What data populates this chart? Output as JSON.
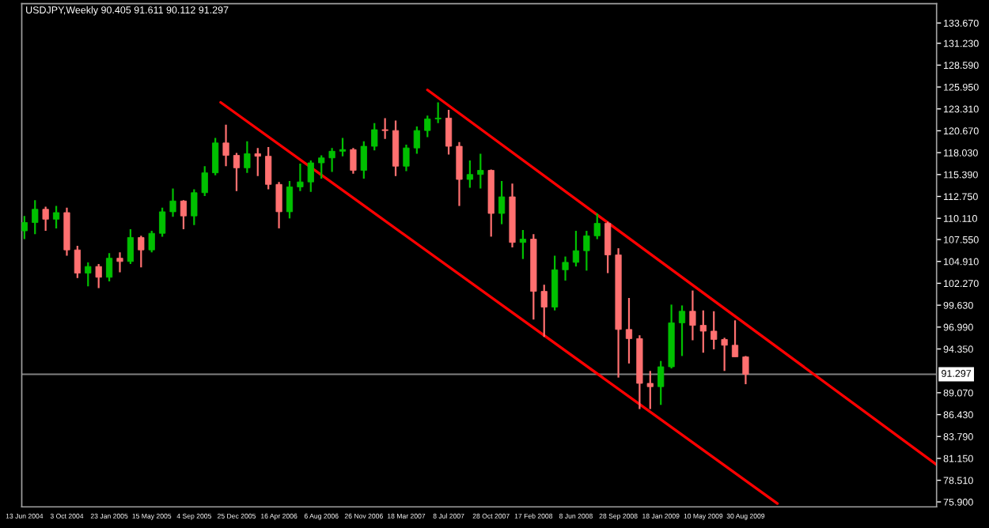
{
  "chart_data": {
    "type": "candlestick",
    "title": "USDJPY,Weekly 90.405 91.611 90.112 91.297",
    "x": [
      "2004-06-13",
      "2004-07-11",
      "2004-08-08",
      "2004-09-05",
      "2004-10-03",
      "2004-10-31",
      "2004-11-28",
      "2004-12-26",
      "2005-01-23",
      "2005-02-20",
      "2005-03-20",
      "2005-04-17",
      "2005-05-15",
      "2005-06-12",
      "2005-07-10",
      "2005-08-07",
      "2005-09-04",
      "2005-10-02",
      "2005-10-30",
      "2005-11-27",
      "2005-12-25",
      "2006-01-22",
      "2006-02-19",
      "2006-03-19",
      "2006-04-16",
      "2006-05-14",
      "2006-06-11",
      "2006-07-09",
      "2006-08-06",
      "2006-09-03",
      "2006-10-01",
      "2006-10-29",
      "2006-11-26",
      "2006-12-24",
      "2007-01-21",
      "2007-02-18",
      "2007-03-18",
      "2007-04-15",
      "2007-05-13",
      "2007-06-10",
      "2007-07-08",
      "2007-08-05",
      "2007-09-02",
      "2007-09-30",
      "2007-10-28",
      "2007-11-25",
      "2007-12-23",
      "2008-01-20",
      "2008-02-17",
      "2008-03-16",
      "2008-04-13",
      "2008-05-11",
      "2008-06-08",
      "2008-07-06",
      "2008-08-03",
      "2008-08-31",
      "2008-09-28",
      "2008-10-26",
      "2008-11-23",
      "2008-12-21",
      "2009-01-18",
      "2009-02-15",
      "2009-03-15",
      "2009-04-12",
      "2009-05-10",
      "2009-06-07",
      "2009-07-05",
      "2009-08-02",
      "2009-08-30"
    ],
    "ohlc": [
      [
        108.6,
        110.4,
        107.6,
        109.6
      ],
      [
        109.6,
        112.3,
        108.2,
        111.2
      ],
      [
        111.2,
        111.5,
        108.6,
        110.0
      ],
      [
        110.0,
        111.6,
        108.9,
        110.8
      ],
      [
        110.8,
        111.4,
        105.6,
        106.3
      ],
      [
        106.3,
        106.8,
        102.9,
        103.5
      ],
      [
        103.5,
        104.8,
        101.9,
        104.3
      ],
      [
        104.3,
        104.6,
        101.7,
        103.0
      ],
      [
        103.0,
        105.9,
        102.5,
        105.3
      ],
      [
        105.3,
        106.0,
        103.6,
        104.9
      ],
      [
        104.9,
        108.8,
        104.6,
        107.8
      ],
      [
        107.8,
        108.0,
        104.2,
        106.3
      ],
      [
        106.3,
        108.6,
        106.0,
        108.3
      ],
      [
        108.3,
        111.4,
        107.9,
        110.9
      ],
      [
        110.9,
        113.7,
        110.3,
        112.2
      ],
      [
        112.2,
        112.3,
        108.8,
        110.4
      ],
      [
        110.4,
        113.6,
        109.3,
        113.2
      ],
      [
        113.2,
        116.4,
        112.8,
        115.6
      ],
      [
        115.6,
        119.8,
        115.3,
        119.2
      ],
      [
        119.2,
        121.4,
        116.4,
        117.7
      ],
      [
        117.7,
        118.0,
        113.4,
        116.2
      ],
      [
        116.2,
        119.4,
        115.6,
        117.9
      ],
      [
        117.9,
        118.6,
        115.2,
        117.6
      ],
      [
        117.6,
        118.7,
        113.6,
        114.2
      ],
      [
        114.2,
        114.5,
        108.9,
        110.9
      ],
      [
        110.9,
        114.6,
        110.1,
        113.9
      ],
      [
        113.9,
        116.7,
        113.4,
        114.5
      ],
      [
        114.5,
        117.1,
        113.3,
        116.8
      ],
      [
        116.8,
        117.7,
        114.9,
        117.4
      ],
      [
        117.4,
        118.6,
        115.7,
        118.2
      ],
      [
        118.2,
        119.8,
        117.6,
        118.4
      ],
      [
        118.4,
        118.6,
        115.5,
        115.9
      ],
      [
        115.9,
        119.4,
        114.9,
        118.8
      ],
      [
        118.8,
        121.6,
        118.3,
        120.8
      ],
      [
        120.8,
        122.2,
        119.7,
        120.7
      ],
      [
        120.7,
        121.9,
        115.2,
        116.4
      ],
      [
        116.4,
        119.0,
        115.8,
        118.6
      ],
      [
        118.6,
        121.2,
        117.9,
        120.7
      ],
      [
        120.7,
        122.5,
        119.9,
        122.1
      ],
      [
        122.1,
        124.1,
        121.6,
        122.2
      ],
      [
        122.2,
        123.2,
        117.8,
        118.8
      ],
      [
        118.8,
        119.3,
        111.6,
        114.8
      ],
      [
        114.8,
        117.1,
        113.8,
        115.4
      ],
      [
        115.4,
        117.9,
        113.7,
        115.9
      ],
      [
        115.9,
        116.0,
        107.9,
        110.7
      ],
      [
        110.7,
        114.6,
        109.4,
        112.7
      ],
      [
        112.7,
        114.3,
        106.6,
        107.2
      ],
      [
        107.2,
        108.7,
        105.2,
        107.6
      ],
      [
        107.6,
        108.2,
        97.9,
        101.3
      ],
      [
        101.3,
        102.1,
        95.8,
        99.4
      ],
      [
        99.4,
        105.6,
        99.0,
        103.9
      ],
      [
        103.9,
        105.5,
        102.6,
        104.8
      ],
      [
        104.8,
        108.6,
        104.3,
        106.2
      ],
      [
        106.2,
        108.6,
        103.8,
        108.0
      ],
      [
        108.0,
        110.7,
        107.6,
        109.5
      ],
      [
        109.5,
        109.7,
        103.5,
        105.7
      ],
      [
        105.7,
        106.5,
        90.9,
        96.7
      ],
      [
        96.7,
        100.5,
        92.6,
        95.6
      ],
      [
        95.6,
        96.0,
        87.1,
        90.2
      ],
      [
        90.2,
        91.7,
        87.1,
        89.8
      ],
      [
        89.8,
        92.9,
        87.6,
        92.2
      ],
      [
        92.2,
        99.7,
        92.0,
        97.5
      ],
      [
        97.5,
        99.6,
        93.5,
        98.9
      ],
      [
        98.9,
        101.4,
        95.4,
        97.2
      ],
      [
        97.2,
        99.0,
        93.9,
        96.5
      ],
      [
        96.5,
        98.9,
        94.3,
        95.5
      ],
      [
        95.5,
        95.7,
        91.7,
        94.8
      ],
      [
        94.8,
        97.8,
        93.4,
        93.4
      ],
      [
        93.4,
        93.5,
        90.1,
        91.297
      ]
    ],
    "colors": [
      "#00c000",
      "#00c000",
      "#ff7070",
      "#00c000",
      "#ff7070",
      "#ff7070",
      "#00c000",
      "#ff7070",
      "#00c000",
      "#ff7070",
      "#00c000",
      "#ff7070",
      "#00c000",
      "#00c000",
      "#00c000",
      "#ff7070",
      "#00c000",
      "#00c000",
      "#00c000",
      "#ff7070",
      "#ff7070",
      "#00c000",
      "#ff7070",
      "#ff7070",
      "#ff7070",
      "#00c000",
      "#00c000",
      "#00c000",
      "#00c000",
      "#00c000",
      "#00c000",
      "#ff7070",
      "#00c000",
      "#00c000",
      "#ff7070",
      "#ff7070",
      "#00c000",
      "#00c000",
      "#00c000",
      "#00c000",
      "#ff7070",
      "#ff7070",
      "#00c000",
      "#00c000",
      "#ff7070",
      "#00c000",
      "#ff7070",
      "#00c000",
      "#ff7070",
      "#ff7070",
      "#00c000",
      "#00c000",
      "#00c000",
      "#00c000",
      "#00c000",
      "#ff7070",
      "#ff7070",
      "#ff7070",
      "#ff7070",
      "#ff7070",
      "#00c000",
      "#00c000",
      "#00c000",
      "#ff7070",
      "#ff7070",
      "#ff7070",
      "#ff7070",
      "#ff7070",
      "#ff7070"
    ],
    "series": [
      {
        "type": "line",
        "color": "#ff0000",
        "x": [
          "2007-05-13",
          "2011-01-16"
        ],
        "values": [
          125.6,
          80.4
        ]
      },
      {
        "type": "line",
        "color": "#ff0000",
        "x": [
          "2005-11-13",
          "2009-11-22"
        ],
        "values": [
          124.1,
          75.7
        ]
      }
    ],
    "ref_lines": [
      {
        "axis": "y",
        "value": 91.297,
        "label": "91.297",
        "color": "#808080"
      }
    ],
    "xlim": [
      "2004-06-06",
      "2011-01-16"
    ],
    "ylim": [
      75.3,
      136.0
    ],
    "xticks": [
      {
        "value": "2004-06-13",
        "label": "13 Jun 2004"
      },
      {
        "value": "2004-10-03",
        "label": "3 Oct 2004"
      },
      {
        "value": "2005-01-23",
        "label": "23 Jan 2005"
      },
      {
        "value": "2005-05-15",
        "label": "15 May 2005"
      },
      {
        "value": "2005-09-04",
        "label": "4 Sep 2005"
      },
      {
        "value": "2005-12-25",
        "label": "25 Dec 2005"
      },
      {
        "value": "2006-04-16",
        "label": "16 Apr 2006"
      },
      {
        "value": "2006-08-06",
        "label": "6 Aug 2006"
      },
      {
        "value": "2006-11-26",
        "label": "26 Nov 2006"
      },
      {
        "value": "2007-03-18",
        "label": "18 Mar 2007"
      },
      {
        "value": "2007-07-08",
        "label": "8 Jul 2007"
      },
      {
        "value": "2007-10-28",
        "label": "28 Oct 2007"
      },
      {
        "value": "2008-02-17",
        "label": "17 Feb 2008"
      },
      {
        "value": "2008-06-08",
        "label": "8 Jun 2008"
      },
      {
        "value": "2008-09-28",
        "label": "28 Sep 2008"
      },
      {
        "value": "2009-01-18",
        "label": "18 Jan 2009"
      },
      {
        "value": "2009-05-10",
        "label": "10 May 2009"
      },
      {
        "value": "2009-08-30",
        "label": "30 Aug 2009"
      }
    ],
    "yticks": [
      {
        "value": 133.67,
        "label": "133.670"
      },
      {
        "value": 131.23,
        "label": "131.230"
      },
      {
        "value": 128.59,
        "label": "128.590"
      },
      {
        "value": 125.95,
        "label": "125.950"
      },
      {
        "value": 123.31,
        "label": "123.310"
      },
      {
        "value": 120.67,
        "label": "120.670"
      },
      {
        "value": 118.03,
        "label": "118.030"
      },
      {
        "value": 115.39,
        "label": "115.390"
      },
      {
        "value": 112.75,
        "label": "112.750"
      },
      {
        "value": 110.11,
        "label": "110.110"
      },
      {
        "value": 107.55,
        "label": "107.550"
      },
      {
        "value": 104.91,
        "label": "104.910"
      },
      {
        "value": 102.27,
        "label": "102.270"
      },
      {
        "value": 99.63,
        "label": "99.630"
      },
      {
        "value": 96.99,
        "label": "96.990"
      },
      {
        "value": 94.35,
        "label": "94.350"
      },
      {
        "value": 89.07,
        "label": "89.070"
      },
      {
        "value": 86.43,
        "label": "86.430"
      },
      {
        "value": 83.79,
        "label": "83.790"
      },
      {
        "value": 81.15,
        "label": "81.150"
      },
      {
        "value": 78.51,
        "label": "78.510"
      },
      {
        "value": 75.9,
        "label": "75.900"
      }
    ]
  }
}
